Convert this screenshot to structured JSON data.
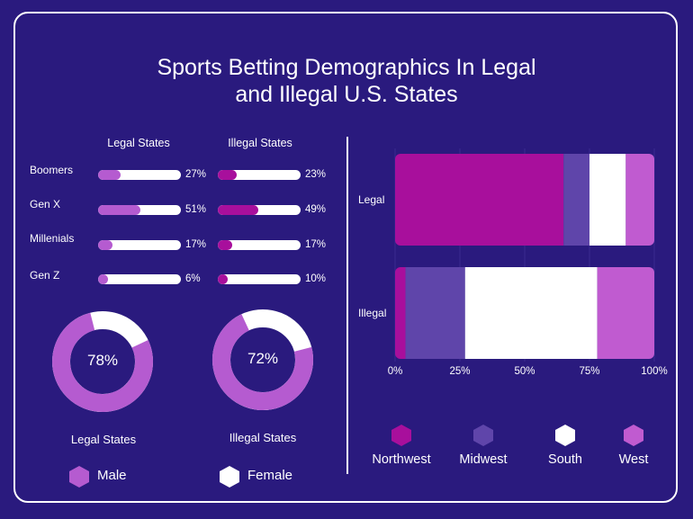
{
  "title_line1": "Sports Betting Demographics In Legal",
  "title_line2": "and Illegal U.S. States",
  "colors": {
    "background": "#2a1a7e",
    "Northwest": "#a80f9c",
    "Midwest": "#5f45aa",
    "South": "#ffffff",
    "West": "#c05bd0",
    "legal_bar": "#b55bd0",
    "illegal_bar": "#a80f9c",
    "male": "#b55bd0",
    "female": "#ffffff"
  },
  "generations": {
    "col_legal": "Legal States",
    "col_illegal": "Illegal States",
    "rows": [
      {
        "label": "Boomers",
        "legal": 27,
        "illegal": 23,
        "legal_text": "27%",
        "illegal_text": "23%"
      },
      {
        "label": "Gen X",
        "legal": 51,
        "illegal": 49,
        "legal_text": "51%",
        "illegal_text": "49%"
      },
      {
        "label": "Millenials",
        "legal": 17,
        "illegal": 17,
        "legal_text": "17%",
        "illegal_text": "17%"
      },
      {
        "label": "Gen Z",
        "legal": 6,
        "illegal": 10,
        "legal_text": "6%",
        "illegal_text": "10%"
      }
    ]
  },
  "gender": {
    "donuts": [
      {
        "label": "Legal States",
        "male_share": 78,
        "center_text": "78%"
      },
      {
        "label": "Illegal States",
        "male_share": 72,
        "center_text": "72%"
      }
    ],
    "legend": [
      {
        "label": "Male",
        "icon": "hexagon-icon"
      },
      {
        "label": "Female",
        "icon": "hexagon-icon"
      }
    ]
  },
  "chart_data": [
    {
      "type": "bar",
      "orientation": "horizontal",
      "stacked": true,
      "categories": [
        "Legal",
        "Illegal"
      ],
      "series": [
        {
          "name": "Northwest",
          "values": [
            65,
            4
          ]
        },
        {
          "name": "Midwest",
          "values": [
            10,
            23
          ]
        },
        {
          "name": "South",
          "values": [
            14,
            51
          ]
        },
        {
          "name": "West",
          "values": [
            11,
            22
          ]
        }
      ],
      "xlim": [
        0,
        100
      ],
      "x_ticks": [
        "0%",
        "25%",
        "50%",
        "75%",
        "100%"
      ],
      "grid": true,
      "legend": "bottom"
    }
  ]
}
